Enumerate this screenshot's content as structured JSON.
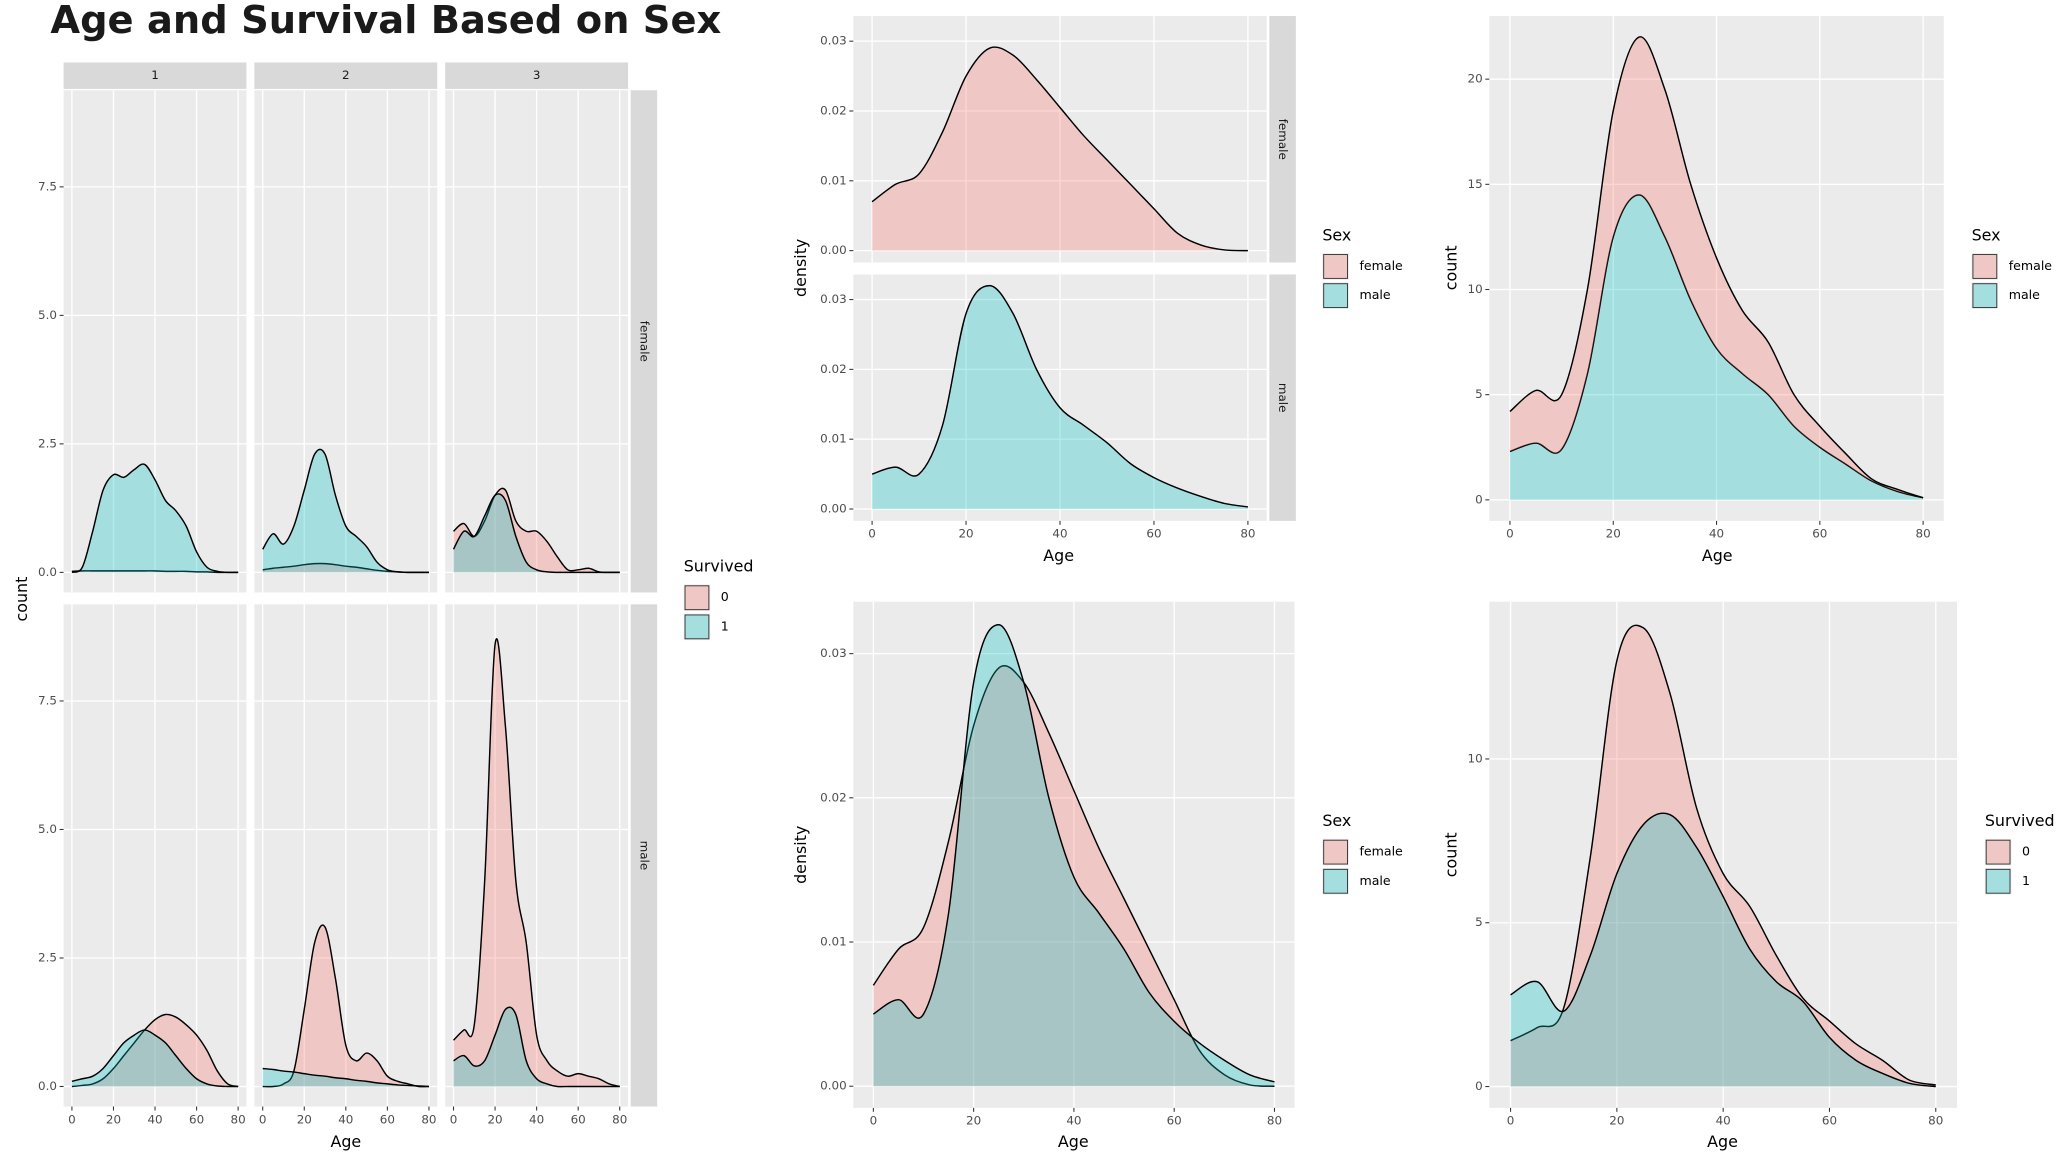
{
  "chart_data": [
    {
      "type": "area",
      "title": "Age and Survival Based on Sex",
      "x_label": "Age",
      "y_label": "count",
      "legend_title": "Survived",
      "facet_cols": [
        "1",
        "2",
        "3"
      ],
      "facet_rows": [
        "female",
        "male"
      ],
      "x": [
        0,
        5,
        10,
        15,
        20,
        25,
        30,
        35,
        40,
        45,
        50,
        55,
        60,
        65,
        70,
        75,
        80
      ],
      "xlim": [
        -4,
        84
      ],
      "xticks": [
        0,
        20,
        40,
        60,
        80
      ],
      "ylim": [
        -0.39,
        9.38
      ],
      "yticks": [
        {
          "value": 0,
          "label": "0.0"
        },
        {
          "value": 2.5,
          "label": "2.5"
        },
        {
          "value": 5,
          "label": "5.0"
        },
        {
          "value": 7.5,
          "label": "7.5"
        }
      ],
      "grid": true,
      "series": [
        {
          "name": "0",
          "color": "#F8766D",
          "panels": [
            [
              0.02,
              0.03,
              0.03,
              0.03,
              0.03,
              0.03,
              0.03,
              0.03,
              0.03,
              0.02,
              0.02,
              0.02,
              0.01,
              0.01,
              0,
              0,
              0
            ],
            [
              0.05,
              0.08,
              0.1,
              0.12,
              0.15,
              0.17,
              0.17,
              0.15,
              0.12,
              0.1,
              0.07,
              0.04,
              0.02,
              0.01,
              0,
              0,
              0
            ],
            [
              0.8,
              0.95,
              0.7,
              1.0,
              1.5,
              1.6,
              1.0,
              0.8,
              0.8,
              0.6,
              0.3,
              0.05,
              0.05,
              0.08,
              0.01,
              0,
              0
            ],
            [
              0,
              0.02,
              0.05,
              0.15,
              0.35,
              0.6,
              0.85,
              1.1,
              1.3,
              1.4,
              1.35,
              1.2,
              1.0,
              0.7,
              0.3,
              0.05,
              0
            ],
            [
              0,
              0,
              0.05,
              0.3,
              1.5,
              2.8,
              3.1,
              2.1,
              0.8,
              0.5,
              0.65,
              0.5,
              0.2,
              0.1,
              0.05,
              0,
              0
            ],
            [
              0.9,
              1.1,
              1.2,
              4.0,
              8.6,
              7.0,
              4.0,
              2.8,
              1.0,
              0.5,
              0.3,
              0.2,
              0.25,
              0.2,
              0.15,
              0.05,
              0
            ]
          ]
        },
        {
          "name": "1",
          "color": "#00BFC4",
          "panels": [
            [
              0,
              0.1,
              0.8,
              1.6,
              1.9,
              1.85,
              2.0,
              2.1,
              1.8,
              1.4,
              1.2,
              0.9,
              0.4,
              0.1,
              0.02,
              0,
              0
            ],
            [
              0.45,
              0.75,
              0.55,
              0.9,
              1.6,
              2.3,
              2.3,
              1.5,
              0.9,
              0.7,
              0.5,
              0.2,
              0.05,
              0.01,
              0,
              0,
              0
            ],
            [
              0.45,
              0.8,
              0.7,
              1.1,
              1.5,
              1.4,
              0.7,
              0.2,
              0.05,
              0.01,
              0,
              0,
              0,
              0,
              0,
              0,
              0
            ],
            [
              0.1,
              0.15,
              0.2,
              0.35,
              0.6,
              0.85,
              1.0,
              1.1,
              1.0,
              0.85,
              0.6,
              0.35,
              0.15,
              0.05,
              0.01,
              0,
              0
            ],
            [
              0.35,
              0.33,
              0.3,
              0.28,
              0.25,
              0.22,
              0.2,
              0.17,
              0.15,
              0.12,
              0.1,
              0.07,
              0.05,
              0.03,
              0.02,
              0.01,
              0
            ],
            [
              0.5,
              0.6,
              0.4,
              0.5,
              1.0,
              1.5,
              1.4,
              0.5,
              0.15,
              0.05,
              0,
              0,
              0,
              0,
              0,
              0,
              0
            ]
          ]
        }
      ]
    },
    {
      "type": "area",
      "x_label": "Age",
      "y_label": "density",
      "legend_title": "Sex",
      "facet_rows": [
        "female",
        "male"
      ],
      "x": [
        0,
        5,
        10,
        15,
        20,
        25,
        30,
        35,
        40,
        45,
        50,
        55,
        60,
        65,
        70,
        75,
        80
      ],
      "xlim": [
        -4,
        84
      ],
      "xticks": [
        0,
        20,
        40,
        60,
        80
      ],
      "ylim": [
        -0.0017,
        0.0336
      ],
      "yticks": [
        {
          "value": 0,
          "label": "0.00"
        },
        {
          "value": 0.01,
          "label": "0.01"
        },
        {
          "value": 0.02,
          "label": "0.02"
        },
        {
          "value": 0.03,
          "label": "0.03"
        }
      ],
      "grid": true,
      "series": [
        {
          "name": "female",
          "color": "#F8766D",
          "panels": [
            [
              0.007,
              0.0095,
              0.011,
              0.017,
              0.025,
              0.029,
              0.028,
              0.0245,
              0.0205,
              0.0165,
              0.013,
              0.0095,
              0.006,
              0.0025,
              0.0008,
              0.0001,
              0
            ],
            null
          ]
        },
        {
          "name": "male",
          "color": "#00BFC4",
          "panels": [
            null,
            [
              0.005,
              0.006,
              0.005,
              0.012,
              0.028,
              0.032,
              0.028,
              0.02,
              0.0145,
              0.012,
              0.0095,
              0.0065,
              0.0045,
              0.003,
              0.0018,
              0.0008,
              0.0003
            ]
          ]
        }
      ]
    },
    {
      "type": "area",
      "stacked": true,
      "x_label": "Age",
      "y_label": "count",
      "legend_title": "Sex",
      "x": [
        0,
        5,
        10,
        15,
        20,
        25,
        30,
        35,
        40,
        45,
        50,
        55,
        60,
        65,
        70,
        75,
        80
      ],
      "xlim": [
        -4,
        84
      ],
      "xticks": [
        0,
        20,
        40,
        60,
        80
      ],
      "ylim": [
        -1,
        23
      ],
      "yticks": [
        0,
        5,
        10,
        15,
        20
      ],
      "grid": true,
      "series": [
        {
          "name": "female",
          "color": "#F8766D",
          "values": [
            1.9,
            2.5,
            2.6,
            4,
            6,
            7.5,
            7,
            5.5,
            4.3,
            3,
            2.5,
            1.5,
            1,
            0.5,
            0.1,
            0.1,
            0
          ]
        },
        {
          "name": "male",
          "color": "#00BFC4",
          "values": [
            2.3,
            2.7,
            2.4,
            6,
            12.5,
            14.5,
            12.5,
            9.5,
            7.2,
            6,
            5,
            3.5,
            2.5,
            1.7,
            0.9,
            0.4,
            0.1
          ]
        }
      ]
    },
    {
      "type": "area",
      "x_label": "Age",
      "y_label": "density",
      "legend_title": "Sex",
      "x": [
        0,
        5,
        10,
        15,
        20,
        25,
        30,
        35,
        40,
        45,
        50,
        55,
        60,
        65,
        70,
        75,
        80
      ],
      "xlim": [
        -4,
        84
      ],
      "xticks": [
        0,
        20,
        40,
        60,
        80
      ],
      "ylim": [
        -0.0015,
        0.0336
      ],
      "yticks": [
        {
          "value": 0,
          "label": "0.00"
        },
        {
          "value": 0.01,
          "label": "0.01"
        },
        {
          "value": 0.02,
          "label": "0.02"
        },
        {
          "value": 0.03,
          "label": "0.03"
        }
      ],
      "grid": true,
      "series": [
        {
          "name": "female",
          "color": "#F8766D",
          "values": [
            0.007,
            0.0095,
            0.011,
            0.017,
            0.025,
            0.029,
            0.028,
            0.0245,
            0.0205,
            0.0165,
            0.013,
            0.0095,
            0.006,
            0.0025,
            0.0008,
            0.0001,
            0
          ]
        },
        {
          "name": "male",
          "color": "#00BFC4",
          "values": [
            0.005,
            0.006,
            0.005,
            0.012,
            0.028,
            0.032,
            0.028,
            0.02,
            0.0145,
            0.012,
            0.0095,
            0.0065,
            0.0045,
            0.003,
            0.0018,
            0.0008,
            0.0003
          ]
        }
      ]
    },
    {
      "type": "area",
      "x_label": "Age",
      "y_label": "count",
      "legend_title": "Survived",
      "x": [
        0,
        5,
        10,
        15,
        20,
        25,
        30,
        35,
        40,
        45,
        50,
        55,
        60,
        65,
        70,
        75,
        80
      ],
      "xlim": [
        -4,
        84
      ],
      "xticks": [
        0,
        20,
        40,
        60,
        80
      ],
      "ylim": [
        -0.65,
        14.8
      ],
      "yticks": [
        0,
        5,
        10
      ],
      "grid": true,
      "series": [
        {
          "name": "0",
          "color": "#F8766D",
          "values": [
            1.4,
            1.8,
            2.4,
            7,
            13,
            14,
            12,
            8.5,
            6.5,
            5.5,
            4.0,
            2.7,
            2.0,
            1.3,
            0.8,
            0.2,
            0.05
          ]
        },
        {
          "name": "1",
          "color": "#00BFC4",
          "values": [
            2.8,
            3.2,
            2.3,
            4,
            6.5,
            8,
            8.3,
            7.3,
            5.8,
            4.2,
            3.2,
            2.6,
            1.5,
            0.8,
            0.4,
            0.1,
            0
          ]
        }
      ]
    }
  ]
}
